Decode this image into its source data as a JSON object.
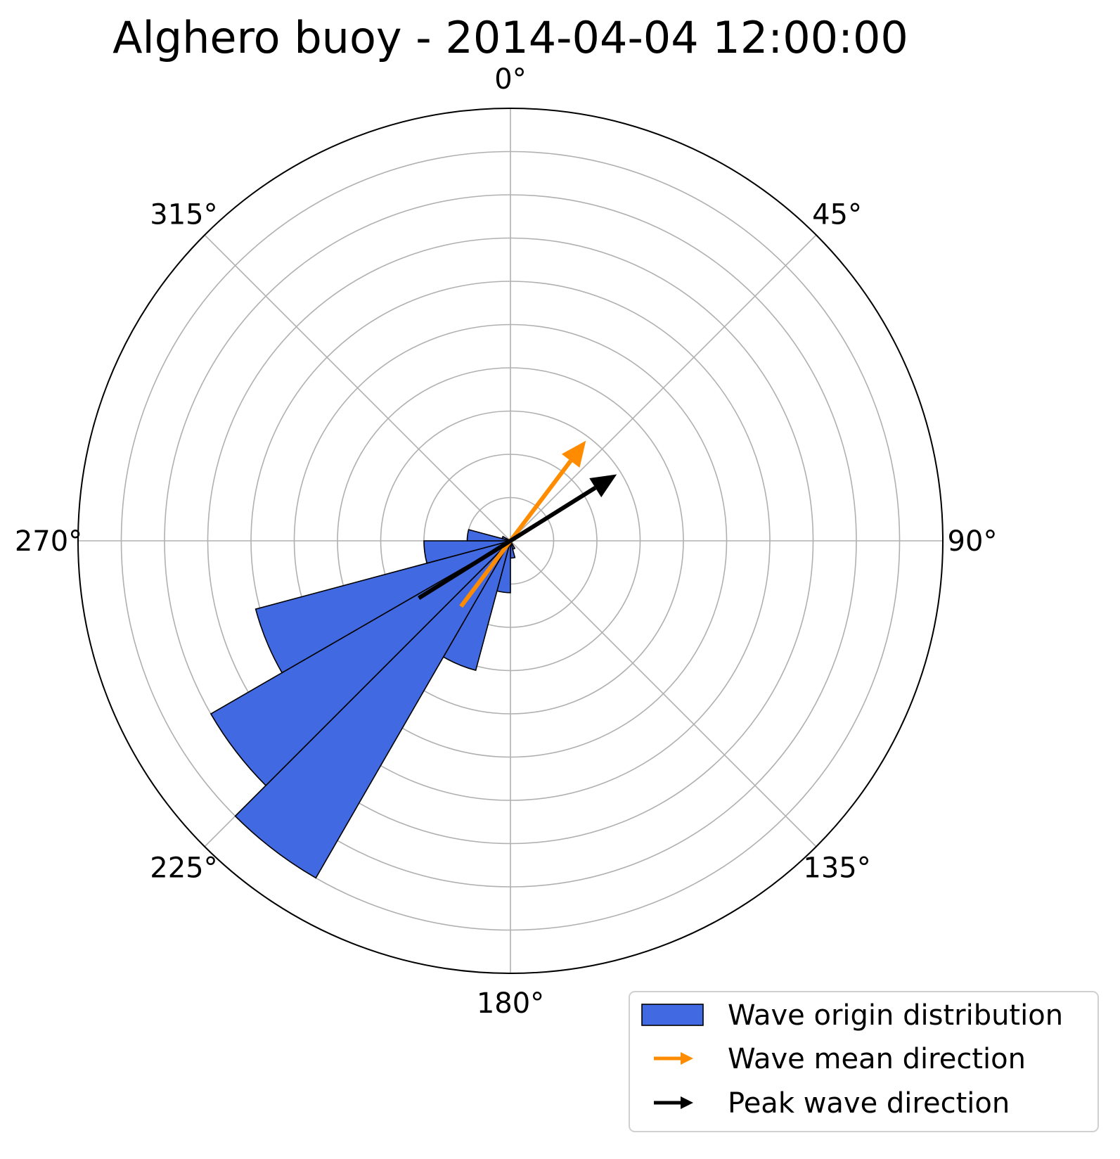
{
  "chart_data": {
    "type": "polar-bar",
    "title": "Alghero buoy - 2014-04-04 12:00:00",
    "theta_direction": "clockwise",
    "theta_zero": "north",
    "theta_ticks": [
      "0°",
      "45°",
      "90°",
      "135°",
      "180°",
      "225°",
      "270°",
      "315°"
    ],
    "theta_tick_values": [
      0,
      45,
      90,
      135,
      180,
      225,
      270,
      315
    ],
    "radial_range": [
      0,
      1
    ],
    "radial_gridlines": [
      0.1,
      0.2,
      0.3,
      0.4,
      0.5,
      0.6,
      0.7,
      0.8,
      0.9
    ],
    "grid": true,
    "legend_position": "lower-right",
    "bin_width_deg": 15,
    "bins": [
      {
        "theta": 157.5,
        "r": 0.02
      },
      {
        "theta": 172.5,
        "r": 0.04
      },
      {
        "theta": 187.5,
        "r": 0.12
      },
      {
        "theta": 202.5,
        "r": 0.31
      },
      {
        "theta": 217.5,
        "r": 0.9
      },
      {
        "theta": 232.5,
        "r": 0.8
      },
      {
        "theta": 247.5,
        "r": 0.61
      },
      {
        "theta": 262.5,
        "r": 0.2
      },
      {
        "theta": 277.5,
        "r": 0.1
      },
      {
        "theta": 292.5,
        "r": 0.02
      }
    ],
    "arrows": [
      {
        "name": "Wave mean direction",
        "theta": 37,
        "r": 0.29,
        "tail_theta": 217,
        "tail_r": 0.19,
        "color": "#ff8c00"
      },
      {
        "name": "Peak wave direction",
        "theta": 58,
        "r": 0.29,
        "tail_theta": 238,
        "tail_r": 0.25,
        "color": "#000000"
      }
    ],
    "legend": [
      {
        "label": "Wave origin distribution",
        "kind": "patch",
        "color": "#4169e1"
      },
      {
        "label": "Wave mean direction",
        "kind": "arrow",
        "color": "#ff8c00"
      },
      {
        "label": "Peak wave direction",
        "kind": "arrow",
        "color": "#000000"
      }
    ],
    "bar_color": "#4169e1",
    "bar_edge_color": "#000000"
  }
}
